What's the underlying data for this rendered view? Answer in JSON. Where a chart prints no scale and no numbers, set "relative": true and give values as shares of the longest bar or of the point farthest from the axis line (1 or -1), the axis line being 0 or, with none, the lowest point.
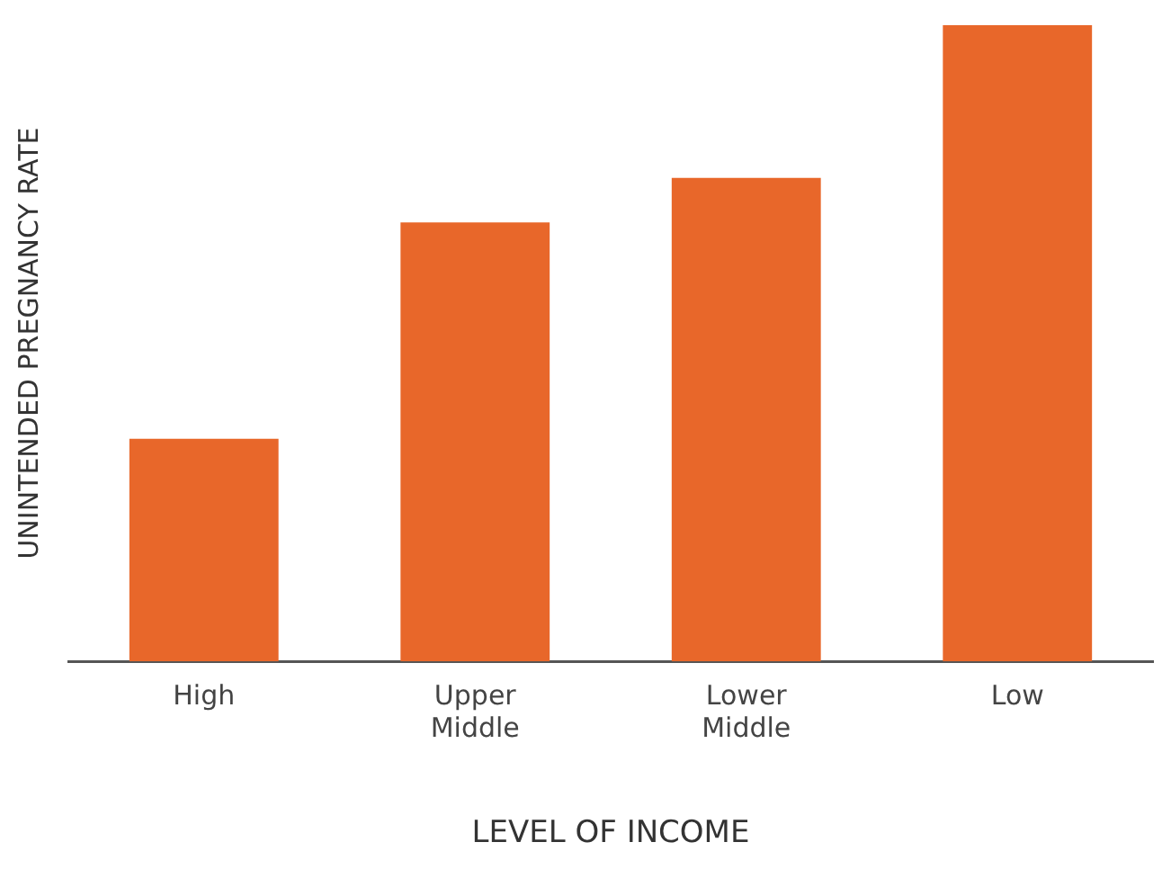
{
  "chart_data": {
    "type": "bar",
    "relative": true,
    "xlabel": "LEVEL OF INCOME",
    "ylabel": "UNINTENDED PREGNANCY RATE",
    "categories": [
      "High",
      "Upper Middle",
      "Lower Middle",
      "Low"
    ],
    "values": [
      0.35,
      0.69,
      0.76,
      1
    ],
    "color": "#e8672a",
    "grid": false,
    "legend": false
  }
}
